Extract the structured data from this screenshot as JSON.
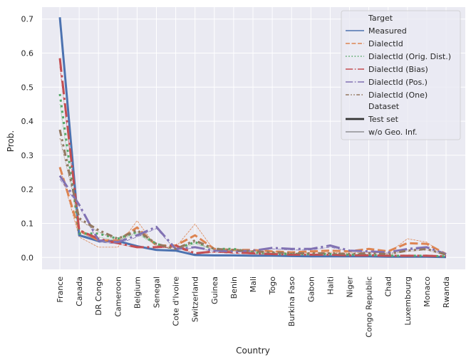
{
  "chart_data": {
    "type": "line",
    "xlabel": "Country",
    "ylabel": "Prob.",
    "ylim": [
      -0.035,
      0.735
    ],
    "yticks": [
      "0.0",
      "0.1",
      "0.2",
      "0.3",
      "0.4",
      "0.5",
      "0.6",
      "0.7"
    ],
    "grid": true,
    "legend_position": "top-right",
    "categories": [
      "France",
      "Canada",
      "DR Congo",
      "Cameroon",
      "Belgium",
      "Senegal",
      "Cote d'Ivoire",
      "Switzerland",
      "Guinea",
      "Benin",
      "Mali",
      "Togo",
      "Burkina Faso",
      "Gabon",
      "Haiti",
      "Niger",
      "Congo Republic",
      "Chad",
      "Luxembourg",
      "Monaco",
      "Rwanda"
    ],
    "legend": {
      "hue_title": "Target",
      "style_title": "Dataset",
      "styles": [
        {
          "name": "Test set"
        },
        {
          "name": "w/o Geo. Inf."
        }
      ]
    },
    "series": [
      {
        "name": "Measured",
        "color": "#4c72b0",
        "dash": "solid",
        "test": [
          0.705,
          0.065,
          0.048,
          0.048,
          0.033,
          0.022,
          0.02,
          0.007,
          0.006,
          0.006,
          0.005,
          0.005,
          0.004,
          0.003,
          0.003,
          0.003,
          0.003,
          0.002,
          0.002,
          0.002,
          0.001
        ],
        "geo": [
          0.705,
          0.065,
          0.048,
          0.048,
          0.033,
          0.022,
          0.02,
          0.007,
          0.006,
          0.006,
          0.005,
          0.005,
          0.004,
          0.003,
          0.003,
          0.003,
          0.003,
          0.002,
          0.002,
          0.002,
          0.001
        ]
      },
      {
        "name": "DialectId",
        "color": "#dd8452",
        "dash": "dashed",
        "test": [
          0.265,
          0.08,
          0.05,
          0.05,
          0.088,
          0.035,
          0.035,
          0.065,
          0.025,
          0.022,
          0.022,
          0.018,
          0.015,
          0.018,
          0.02,
          0.018,
          0.025,
          0.018,
          0.042,
          0.04,
          0.01
        ],
        "geo": [
          0.265,
          0.06,
          0.03,
          0.03,
          0.108,
          0.03,
          0.03,
          0.098,
          0.02,
          0.02,
          0.02,
          0.018,
          0.012,
          0.015,
          0.015,
          0.013,
          0.015,
          0.012,
          0.055,
          0.045,
          0.005
        ]
      },
      {
        "name": "DialectId (Orig. Dist.)",
        "color": "#55a868",
        "dash": "dotted",
        "test": [
          0.48,
          0.07,
          0.07,
          0.055,
          0.075,
          0.04,
          0.025,
          0.045,
          0.025,
          0.025,
          0.015,
          0.012,
          0.01,
          0.01,
          0.01,
          0.008,
          0.008,
          0.005,
          0.005,
          0.005,
          0.003
        ],
        "geo": [
          0.45,
          0.065,
          0.06,
          0.05,
          0.07,
          0.035,
          0.022,
          0.04,
          0.022,
          0.022,
          0.012,
          0.01,
          0.008,
          0.008,
          0.008,
          0.006,
          0.006,
          0.004,
          0.004,
          0.004,
          0.002
        ]
      },
      {
        "name": "DialectId (Bias)",
        "color": "#c44e52",
        "dash": "dashdot",
        "test": [
          0.585,
          0.08,
          0.055,
          0.042,
          0.03,
          0.03,
          0.035,
          0.012,
          0.018,
          0.015,
          0.012,
          0.01,
          0.008,
          0.008,
          0.008,
          0.006,
          0.006,
          0.005,
          0.005,
          0.005,
          0.003
        ],
        "geo": [
          0.56,
          0.075,
          0.05,
          0.04,
          0.028,
          0.028,
          0.03,
          0.01,
          0.015,
          0.012,
          0.01,
          0.008,
          0.006,
          0.006,
          0.006,
          0.005,
          0.005,
          0.004,
          0.004,
          0.004,
          0.002
        ]
      },
      {
        "name": "DialectId (Pos.)",
        "color": "#8172b3",
        "dash": "dashdot",
        "test": [
          0.24,
          0.155,
          0.05,
          0.045,
          0.065,
          0.09,
          0.025,
          0.03,
          0.02,
          0.018,
          0.02,
          0.028,
          0.025,
          0.025,
          0.035,
          0.02,
          0.018,
          0.015,
          0.025,
          0.03,
          0.01
        ],
        "geo": [
          0.23,
          0.15,
          0.045,
          0.04,
          0.06,
          0.085,
          0.022,
          0.028,
          0.018,
          0.016,
          0.018,
          0.025,
          0.022,
          0.022,
          0.03,
          0.018,
          0.016,
          0.013,
          0.022,
          0.026,
          0.008
        ]
      },
      {
        "name": "DialectId (One)",
        "color": "#937860",
        "dash": "dashdotdot",
        "test": [
          0.375,
          0.115,
          0.08,
          0.055,
          0.08,
          0.04,
          0.025,
          0.05,
          0.025,
          0.022,
          0.018,
          0.015,
          0.012,
          0.012,
          0.012,
          0.01,
          0.012,
          0.01,
          0.02,
          0.025,
          0.008
        ],
        "geo": [
          0.35,
          0.11,
          0.075,
          0.05,
          0.075,
          0.035,
          0.022,
          0.045,
          0.022,
          0.02,
          0.016,
          0.013,
          0.01,
          0.01,
          0.01,
          0.009,
          0.01,
          0.009,
          0.018,
          0.022,
          0.006
        ]
      }
    ]
  }
}
